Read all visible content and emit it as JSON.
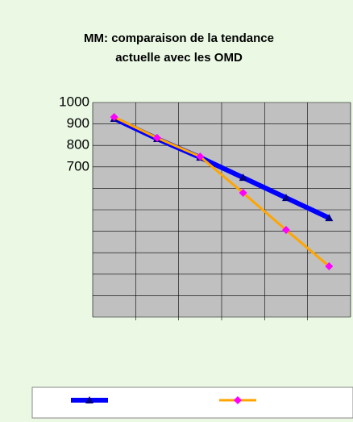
{
  "chart_data": {
    "type": "line",
    "title": [
      "MM: comparaison de la tendance",
      "actuelle avec les OMD"
    ],
    "categories": [
      null,
      null,
      null,
      null,
      null,
      null
    ],
    "series": [
      {
        "color": "#0000ff",
        "marker_color": "#000080",
        "values": [
          925,
          831,
          744,
          650,
          556,
          462
        ]
      },
      {
        "color": "#ffa500",
        "marker_color": "#ff00ff",
        "values": [
          932,
          835,
          748,
          579,
          406,
          237
        ]
      }
    ],
    "ylim": [
      0,
      1000
    ],
    "yticks": [
      {
        "value": 0,
        "label": null
      },
      {
        "value": 100,
        "label": null
      },
      {
        "value": 200,
        "label": null
      },
      {
        "value": 300,
        "label": null
      },
      {
        "value": 400,
        "label": null
      },
      {
        "value": 500,
        "label": null
      },
      {
        "value": 600,
        "label": null
      },
      700,
      800,
      900,
      1000
    ],
    "grid": true
  }
}
